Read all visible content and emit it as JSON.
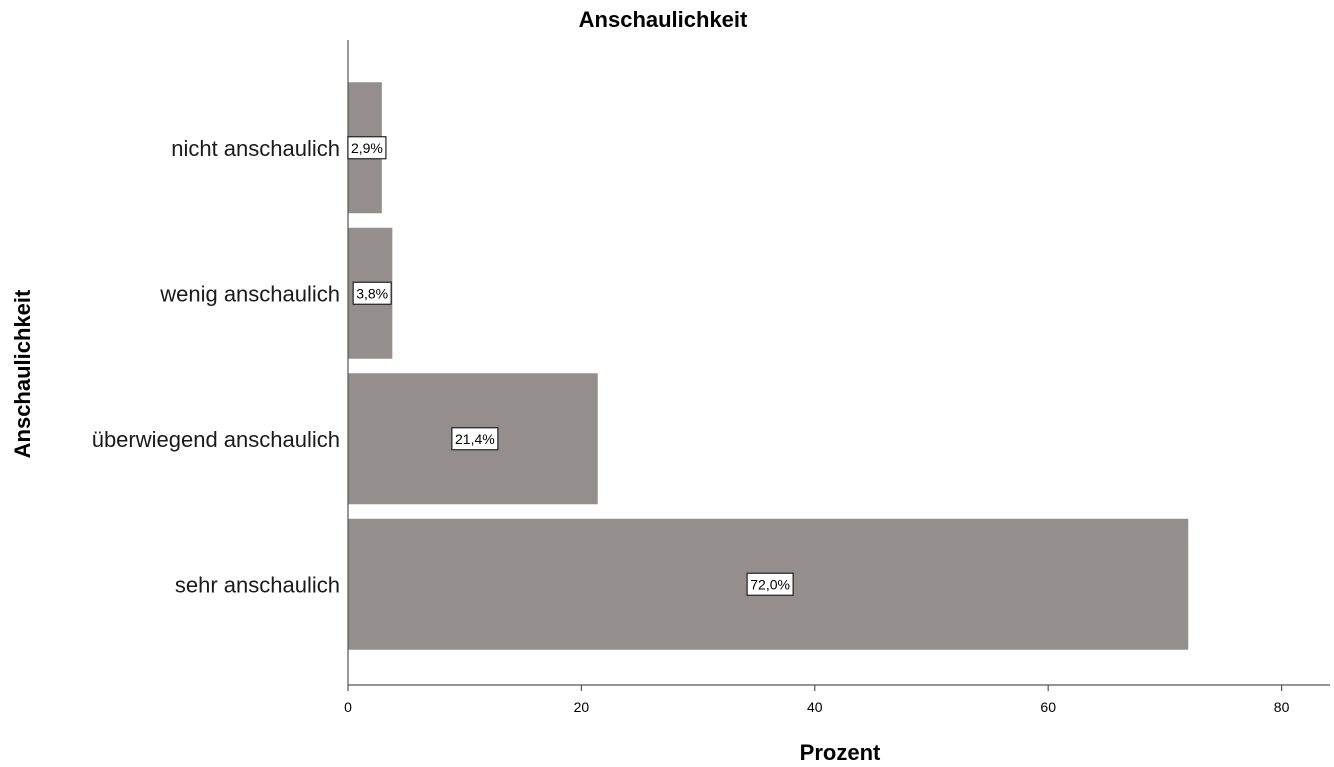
{
  "chart_data": {
    "type": "bar",
    "orientation": "horizontal",
    "title": "Anschaulichkeit",
    "xlabel": "Prozent",
    "ylabel": "Anschaulichkeit",
    "categories": [
      "nicht anschaulich",
      "wenig anschaulich",
      "überwiegend anschaulich",
      "sehr anschaulich"
    ],
    "values": [
      2.9,
      3.8,
      21.4,
      72.0
    ],
    "data_labels": [
      "2,9%",
      "3,8%",
      "21,4%",
      "72,0%"
    ],
    "xlim": [
      0,
      84
    ],
    "xticks": [
      0,
      20,
      40,
      60,
      80
    ],
    "grid": false,
    "bar_color": "#948f8d"
  }
}
